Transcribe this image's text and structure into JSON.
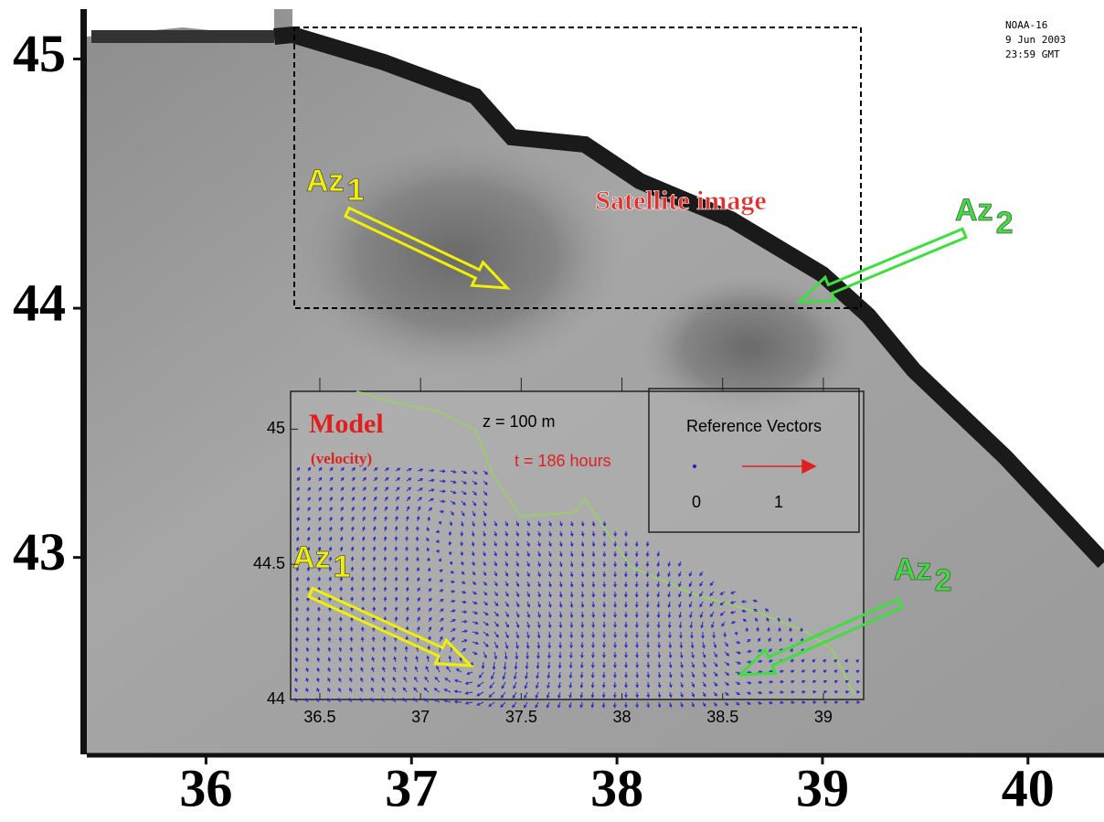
{
  "satellite": {
    "caption": [
      "NOAA-16",
      "9 Jun 2003",
      "23:59 GMT"
    ],
    "label": "Satellite image",
    "xlim": [
      35.42,
      40.37
    ],
    "ylim": [
      42.21,
      45.2
    ],
    "xticks": [
      36,
      37,
      38,
      39,
      40
    ],
    "yticks": [
      45,
      44,
      43
    ],
    "markers": [
      {
        "label": "Az",
        "subscript": "1"
      },
      {
        "label": "Az",
        "subscript": "2"
      }
    ]
  },
  "model": {
    "title": "Model",
    "subtitle": "(velocity)",
    "depth": "z = 100 m",
    "time": "t = 186 hours",
    "reference": {
      "title": "Reference Vectors",
      "labels": [
        "0",
        "1"
      ]
    },
    "xlim": [
      36.355,
      39.2
    ],
    "ylim": [
      44,
      45.14
    ],
    "xticks": [
      36.5,
      37,
      37.5,
      38,
      38.5,
      39
    ],
    "yticks": [
      45,
      44.5,
      44
    ],
    "markers": [
      {
        "label": "Az",
        "subscript": "1"
      },
      {
        "label": "Az",
        "subscript": "2"
      }
    ]
  }
}
